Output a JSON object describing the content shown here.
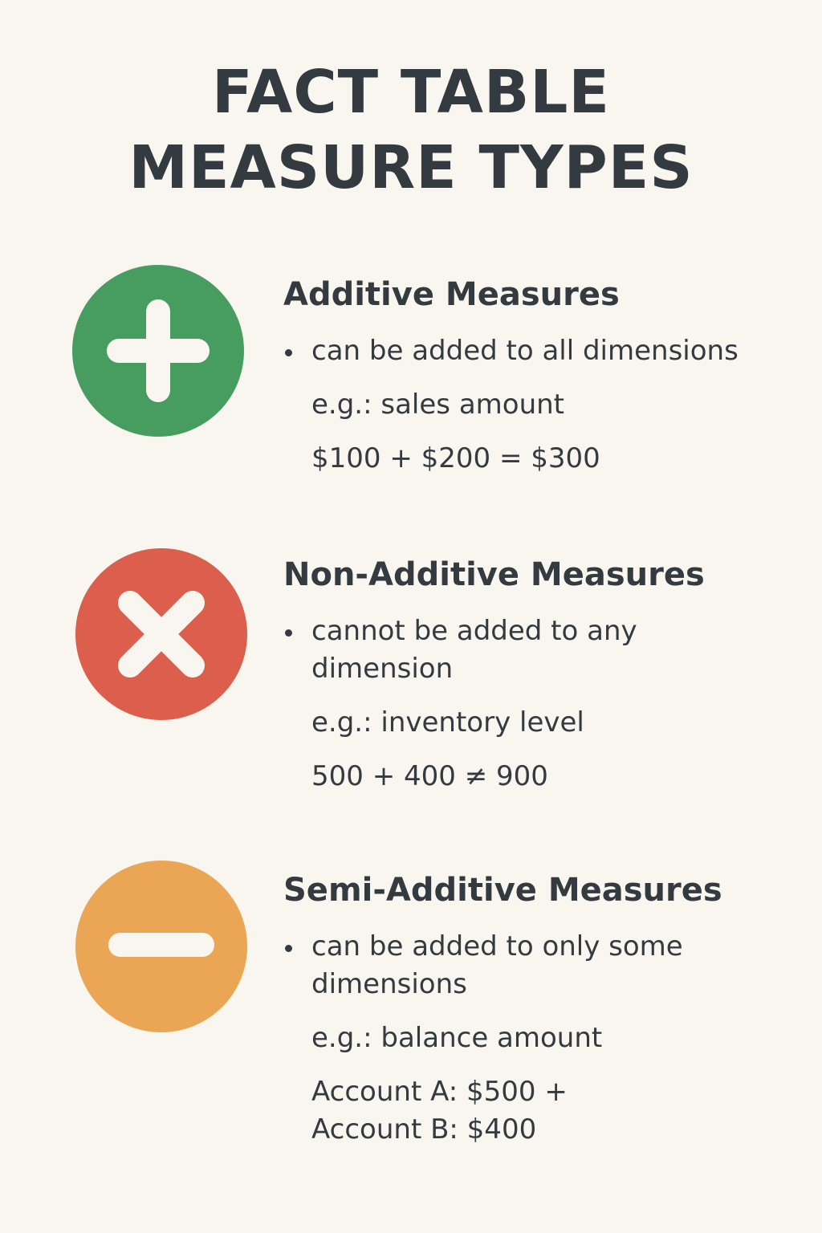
{
  "title": {
    "line1": "FACT TABLE",
    "line2": "MEASURE TYPES"
  },
  "sections": [
    {
      "icon": "plus-icon",
      "color": "#479d5f",
      "heading": "Additive Measures",
      "bullet": "can be added to all dimensions",
      "example": "e.g.: sales amount",
      "formula": "$100 + $200 = $300"
    },
    {
      "icon": "cross-icon",
      "color": "#dc5f4e",
      "heading": "Non-Additive Measures",
      "bullet_line1": "cannot be added to any",
      "bullet_line2": "dimension",
      "example": "e.g.: inventory level",
      "formula": "500 + 400 ≠ 900"
    },
    {
      "icon": "minus-icon",
      "color": "#eaa655",
      "heading": "Semi-Additive Measures",
      "bullet_line1": "can be added to only some",
      "bullet_line2": "dimensions",
      "example": "e.g.: balance amount",
      "formula_line1": "Account A: $500 +",
      "formula_line2": "Account B: $400"
    }
  ]
}
